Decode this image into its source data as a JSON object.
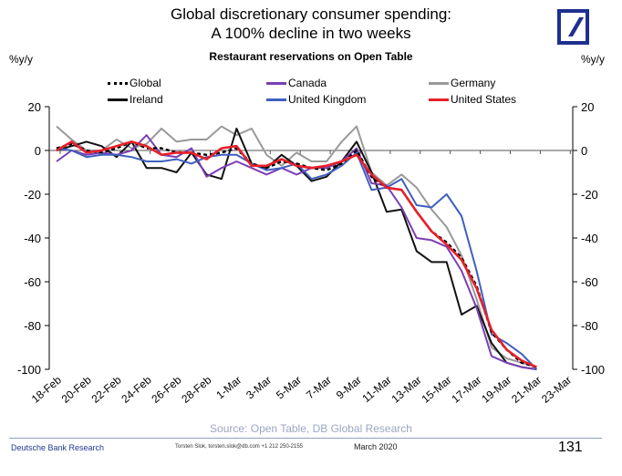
{
  "header": {
    "title_line1": "Global discretionary consumer spending:",
    "title_line2": "A 100% decline in two weeks",
    "logo": "deutsche-bank-logo",
    "logo_color": "#1f2f8f"
  },
  "footer": {
    "source": "Source: Open Table, DB Global Research",
    "publisher": "Deutsche Bank Research",
    "contact": "Torsten Slok, torsten.slok@db.com  +1 212 250-2155",
    "date": "March  2020",
    "page_number": "131"
  },
  "chart_data": {
    "type": "line",
    "title": "Restaurant reservations on Open Table",
    "ylabel": "%y/y",
    "ylabel_right": "%y/y",
    "xlabel": "",
    "ylim": [
      -100,
      20
    ],
    "yticks": [
      20,
      0,
      -20,
      -40,
      -60,
      -80,
      -100
    ],
    "ytick_labels": [
      "20",
      "0",
      "-20",
      "-40",
      "-60",
      "-80",
      "-100"
    ],
    "x_tick_labels": [
      "18-Feb",
      "20-Feb",
      "22-Feb",
      "24-Feb",
      "26-Feb",
      "28-Feb",
      "1-Mar",
      "3-Mar",
      "5-Mar",
      "7-Mar",
      "9-Mar",
      "11-Mar",
      "13-Mar",
      "15-Mar",
      "17-Mar",
      "19-Mar",
      "21-Mar",
      "23-Mar"
    ],
    "x_tick_day_index": [
      0,
      2,
      4,
      6,
      8,
      10,
      12,
      14,
      16,
      18,
      20,
      22,
      24,
      26,
      28,
      30,
      32,
      34
    ],
    "x_day_range": [
      0,
      34
    ],
    "x": [
      "18-Feb",
      "19-Feb",
      "20-Feb",
      "21-Feb",
      "22-Feb",
      "23-Feb",
      "24-Feb",
      "25-Feb",
      "26-Feb",
      "27-Feb",
      "28-Feb",
      "29-Feb",
      "1-Mar",
      "2-Mar",
      "3-Mar",
      "4-Mar",
      "5-Mar",
      "6-Mar",
      "7-Mar",
      "8-Mar",
      "9-Mar",
      "10-Mar",
      "11-Mar",
      "12-Mar",
      "13-Mar",
      "14-Mar",
      "15-Mar",
      "16-Mar",
      "17-Mar",
      "18-Mar",
      "19-Mar",
      "20-Mar",
      "21-Mar"
    ],
    "grid": false,
    "zero_line": true,
    "legend_position": "top",
    "series": [
      {
        "name": "Global",
        "color": "#000000",
        "style": "dashed",
        "values": [
          1,
          3,
          0,
          -1,
          1,
          4,
          1,
          1,
          -1,
          -1,
          -2,
          -1,
          1,
          -6,
          -8,
          -5,
          -6,
          -8,
          -9,
          -6,
          0,
          -12,
          -17,
          -18,
          -28,
          -37,
          -42,
          -49,
          -62,
          -83,
          -91,
          -97,
          -99
        ]
      },
      {
        "name": "Canada",
        "color": "#7b3fb5",
        "style": "solid",
        "values": [
          -5,
          0,
          -2,
          -1,
          -2,
          0,
          7,
          -2,
          -3,
          1,
          -12,
          -8,
          -5,
          -8,
          -11,
          -8,
          -11,
          -8,
          -8,
          -5,
          1,
          -15,
          -16,
          -26,
          -40,
          -41,
          -44,
          -55,
          -72,
          -94,
          -97,
          -99,
          -100
        ]
      },
      {
        "name": "Germany",
        "color": "#999999",
        "style": "solid",
        "values": [
          11,
          5,
          0,
          0,
          5,
          1,
          3,
          10,
          4,
          5,
          5,
          11,
          7,
          10,
          -2,
          -7,
          -1,
          -5,
          -5,
          4,
          11,
          -10,
          -16,
          -11,
          -17,
          -27,
          -35,
          -48,
          -68,
          -90,
          -95,
          -97,
          -99
        ]
      },
      {
        "name": "Ireland",
        "color": "#111111",
        "style": "solid",
        "values": [
          0,
          2,
          4,
          2,
          -3,
          4,
          -8,
          -8,
          -10,
          -1,
          -11,
          -13,
          10,
          -6,
          -8,
          -2,
          -7,
          -14,
          -12,
          -5,
          4,
          -10,
          -28,
          -27,
          -46,
          -51,
          -51,
          -75,
          -71,
          -88,
          -97,
          -99,
          -100
        ]
      },
      {
        "name": "United Kingdom",
        "color": "#3f5fbf",
        "style": "solid",
        "values": [
          1,
          0,
          -3,
          -2,
          -2,
          -3,
          -5,
          -5,
          -4,
          -6,
          -3,
          -2,
          -2,
          -6,
          -9,
          -8,
          -6,
          -13,
          -11,
          -7,
          -1,
          -18,
          -17,
          -13,
          -25,
          -26,
          -20,
          -30,
          -55,
          -84,
          -88,
          -93,
          -100
        ]
      },
      {
        "name": "United States",
        "color": "#e8202a",
        "style": "solid",
        "values": [
          0,
          4,
          -1,
          0,
          2,
          4,
          2,
          -2,
          -1,
          -1,
          -4,
          1,
          2,
          -7,
          -7,
          -4,
          -7,
          -8,
          -7,
          -5,
          -2,
          -11,
          -17,
          -18,
          -28,
          -37,
          -43,
          -50,
          -63,
          -82,
          -91,
          -96,
          -99
        ]
      }
    ],
    "legend_order": [
      "Global",
      "Canada",
      "Germany",
      "Ireland",
      "United Kingdom",
      "United States"
    ]
  }
}
